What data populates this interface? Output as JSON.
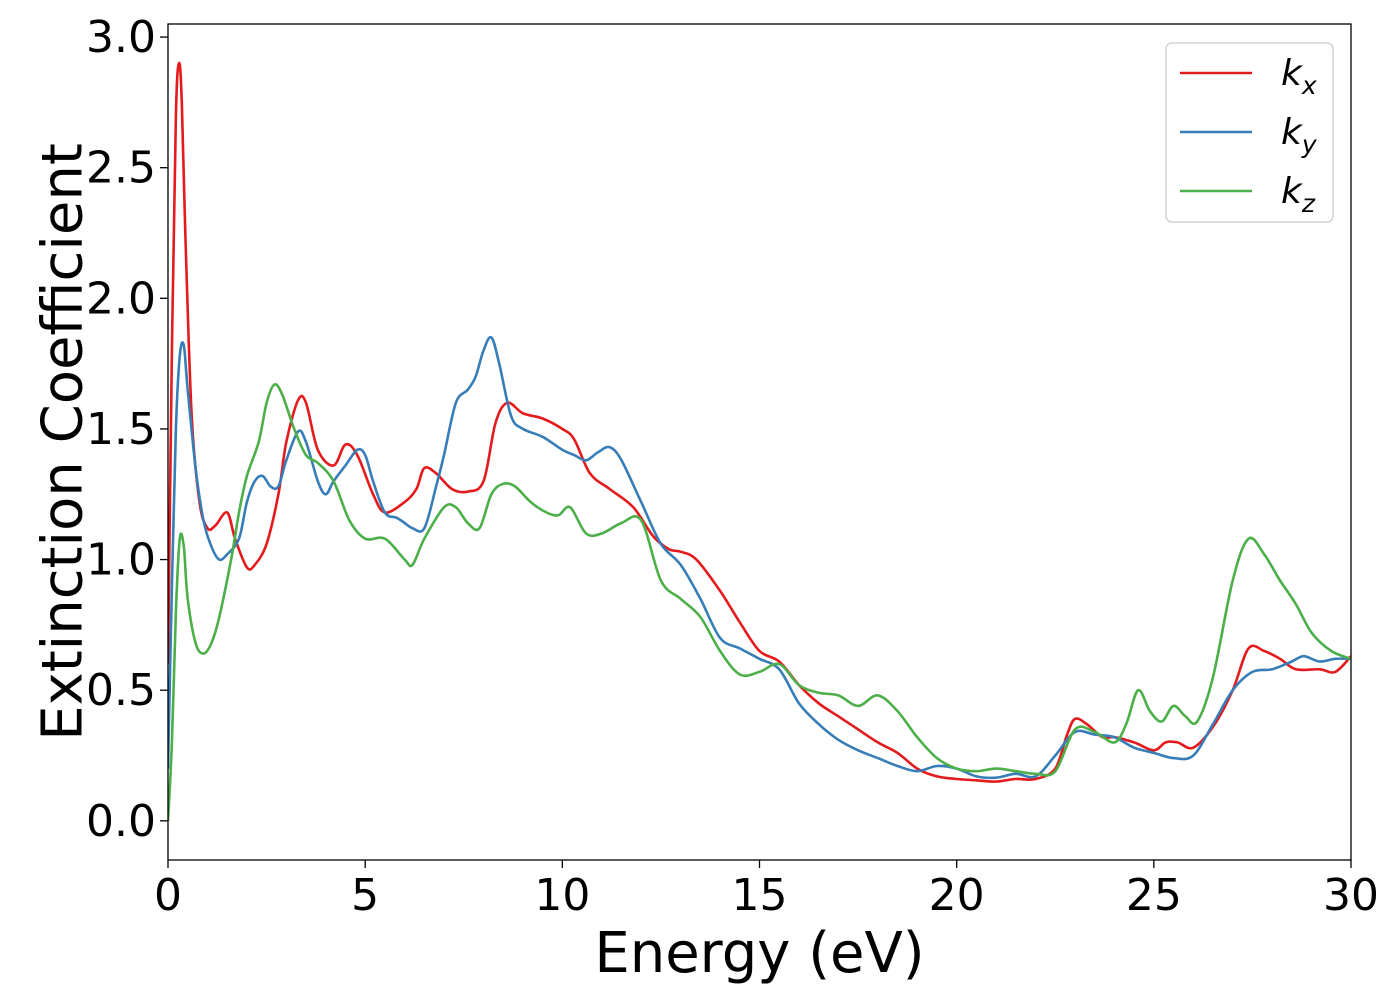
{
  "chart_data": {
    "type": "line",
    "title": "",
    "xlabel": "Energy (eV)",
    "ylabel": "Extinction Coefficient",
    "xlim": [
      0,
      30
    ],
    "ylim": [
      -0.15,
      3.05
    ],
    "xticks": [
      0,
      5,
      10,
      15,
      20,
      25,
      30
    ],
    "xtick_labels": [
      "0",
      "5",
      "10",
      "15",
      "20",
      "25",
      "30"
    ],
    "yticks": [
      0.0,
      0.5,
      1.0,
      1.5,
      2.0,
      2.5,
      3.0
    ],
    "ytick_labels": [
      "0.0",
      "0.5",
      "1.0",
      "1.5",
      "2.0",
      "2.5",
      "3.0"
    ],
    "grid": false,
    "legend_position": "top-right",
    "series": [
      {
        "name": "k_x",
        "legend_base": "k",
        "legend_sub": "x",
        "color": "#e41a1c",
        "x": [
          0,
          0.1,
          0.2,
          0.28,
          0.35,
          0.45,
          0.6,
          0.8,
          1.0,
          1.2,
          1.5,
          1.7,
          2.0,
          2.2,
          2.5,
          2.8,
          3.0,
          3.3,
          3.5,
          3.8,
          4.2,
          4.5,
          4.8,
          5.2,
          5.5,
          6.0,
          6.3,
          6.5,
          6.8,
          7.2,
          7.6,
          8.0,
          8.3,
          8.6,
          9.0,
          9.5,
          10.0,
          10.3,
          10.7,
          11.2,
          11.8,
          12.3,
          12.7,
          13.0,
          13.4,
          14.0,
          14.5,
          15.0,
          15.5,
          16.0,
          16.5,
          17.0,
          17.5,
          18.0,
          18.5,
          19.0,
          19.5,
          20.0,
          20.5,
          21.0,
          21.5,
          22.0,
          22.5,
          22.8,
          23.0,
          23.3,
          23.7,
          24.0,
          24.5,
          25.0,
          25.3,
          25.6,
          26.0,
          26.5,
          27.0,
          27.4,
          27.8,
          28.2,
          28.6,
          29.2,
          29.6,
          30.0
        ],
        "y": [
          0.6,
          1.8,
          2.7,
          2.9,
          2.75,
          2.2,
          1.55,
          1.22,
          1.12,
          1.13,
          1.18,
          1.08,
          0.97,
          0.98,
          1.06,
          1.25,
          1.45,
          1.61,
          1.6,
          1.42,
          1.36,
          1.44,
          1.4,
          1.25,
          1.18,
          1.22,
          1.27,
          1.35,
          1.33,
          1.27,
          1.26,
          1.3,
          1.52,
          1.6,
          1.56,
          1.54,
          1.5,
          1.46,
          1.33,
          1.27,
          1.2,
          1.09,
          1.04,
          1.03,
          1.0,
          0.88,
          0.76,
          0.65,
          0.61,
          0.52,
          0.45,
          0.4,
          0.35,
          0.3,
          0.26,
          0.2,
          0.17,
          0.16,
          0.155,
          0.15,
          0.16,
          0.16,
          0.2,
          0.33,
          0.39,
          0.37,
          0.32,
          0.32,
          0.3,
          0.27,
          0.3,
          0.3,
          0.28,
          0.36,
          0.5,
          0.66,
          0.65,
          0.62,
          0.58,
          0.58,
          0.57,
          0.63
        ]
      },
      {
        "name": "k_y",
        "legend_base": "k",
        "legend_sub": "y",
        "color": "#377eb8",
        "x": [
          0,
          0.1,
          0.2,
          0.3,
          0.4,
          0.5,
          0.7,
          0.9,
          1.1,
          1.3,
          1.5,
          1.8,
          2.0,
          2.2,
          2.4,
          2.6,
          2.8,
          3.0,
          3.3,
          3.5,
          3.8,
          4.0,
          4.2,
          4.5,
          4.8,
          5.0,
          5.2,
          5.5,
          5.8,
          6.0,
          6.2,
          6.5,
          6.8,
          7.0,
          7.3,
          7.6,
          7.8,
          8.0,
          8.2,
          8.4,
          8.7,
          9.0,
          9.5,
          10.0,
          10.3,
          10.6,
          10.9,
          11.2,
          11.5,
          12.0,
          12.5,
          13.0,
          13.5,
          14.0,
          14.5,
          15.0,
          15.5,
          16.0,
          16.5,
          17.0,
          17.5,
          18.0,
          18.5,
          19.0,
          19.5,
          20.0,
          20.5,
          21.0,
          21.5,
          22.0,
          22.5,
          23.0,
          23.5,
          24.0,
          24.5,
          25.0,
          25.5,
          26.0,
          26.5,
          27.0,
          27.5,
          28.0,
          28.5,
          28.8,
          29.2,
          29.6,
          30.0
        ],
        "y": [
          0.2,
          0.9,
          1.5,
          1.78,
          1.82,
          1.65,
          1.35,
          1.15,
          1.05,
          1.0,
          1.02,
          1.08,
          1.22,
          1.3,
          1.32,
          1.28,
          1.28,
          1.38,
          1.49,
          1.45,
          1.3,
          1.25,
          1.3,
          1.36,
          1.42,
          1.4,
          1.3,
          1.18,
          1.16,
          1.14,
          1.12,
          1.12,
          1.28,
          1.4,
          1.6,
          1.65,
          1.7,
          1.8,
          1.85,
          1.75,
          1.55,
          1.5,
          1.47,
          1.42,
          1.4,
          1.38,
          1.41,
          1.43,
          1.38,
          1.22,
          1.06,
          0.98,
          0.85,
          0.7,
          0.66,
          0.62,
          0.58,
          0.45,
          0.37,
          0.31,
          0.27,
          0.24,
          0.21,
          0.19,
          0.21,
          0.2,
          0.17,
          0.165,
          0.18,
          0.17,
          0.25,
          0.34,
          0.33,
          0.32,
          0.28,
          0.26,
          0.24,
          0.25,
          0.37,
          0.5,
          0.57,
          0.58,
          0.61,
          0.63,
          0.61,
          0.62,
          0.62
        ]
      },
      {
        "name": "k_z",
        "legend_base": "k",
        "legend_sub": "z",
        "color": "#4daf4a",
        "x": [
          0,
          0.1,
          0.2,
          0.3,
          0.4,
          0.5,
          0.7,
          0.9,
          1.1,
          1.3,
          1.6,
          1.8,
          2.0,
          2.3,
          2.5,
          2.7,
          2.9,
          3.2,
          3.5,
          3.8,
          4.2,
          4.6,
          5.0,
          5.5,
          6.0,
          6.2,
          6.5,
          7.0,
          7.3,
          7.6,
          7.9,
          8.2,
          8.5,
          8.8,
          9.2,
          9.6,
          9.9,
          10.2,
          10.6,
          11.0,
          11.5,
          12.0,
          12.5,
          13.0,
          13.5,
          14.0,
          14.5,
          15.0,
          15.5,
          16.0,
          16.5,
          17.0,
          17.5,
          18.0,
          18.5,
          19.0,
          19.5,
          20.0,
          20.5,
          21.0,
          21.5,
          22.0,
          22.5,
          23.0,
          23.5,
          24.0,
          24.3,
          24.6,
          24.9,
          25.2,
          25.5,
          25.8,
          26.1,
          26.5,
          27.0,
          27.4,
          27.8,
          28.2,
          28.6,
          29.0,
          29.5,
          30.0
        ],
        "y": [
          0.0,
          0.3,
          0.8,
          1.08,
          1.05,
          0.85,
          0.68,
          0.64,
          0.68,
          0.78,
          1.0,
          1.18,
          1.32,
          1.45,
          1.6,
          1.67,
          1.63,
          1.5,
          1.4,
          1.37,
          1.3,
          1.15,
          1.08,
          1.08,
          1.0,
          0.98,
          1.08,
          1.2,
          1.2,
          1.14,
          1.12,
          1.25,
          1.29,
          1.28,
          1.22,
          1.18,
          1.17,
          1.2,
          1.1,
          1.1,
          1.14,
          1.15,
          0.92,
          0.85,
          0.78,
          0.65,
          0.56,
          0.57,
          0.6,
          0.52,
          0.49,
          0.48,
          0.44,
          0.48,
          0.42,
          0.32,
          0.24,
          0.2,
          0.19,
          0.2,
          0.19,
          0.18,
          0.19,
          0.35,
          0.34,
          0.3,
          0.37,
          0.5,
          0.42,
          0.38,
          0.44,
          0.4,
          0.38,
          0.55,
          0.92,
          1.08,
          1.02,
          0.92,
          0.83,
          0.72,
          0.65,
          0.62
        ]
      }
    ]
  }
}
